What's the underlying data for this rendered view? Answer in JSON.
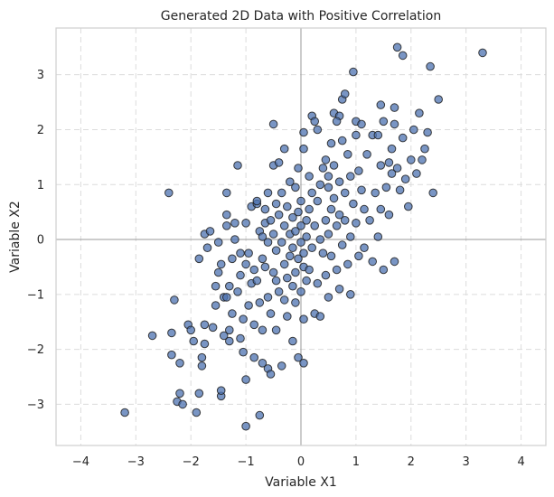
{
  "chart_data": {
    "type": "scatter",
    "title": "Generated 2D Data with Positive Correlation",
    "xlabel": "Variable X1",
    "ylabel": "Variable X2",
    "xlim": [
      -4.45,
      4.45
    ],
    "ylim": [
      -3.75,
      3.85
    ],
    "xticks": [
      -4,
      -3,
      -2,
      -1,
      0,
      1,
      2,
      3,
      4
    ],
    "yticks": [
      -3,
      -2,
      -1,
      0,
      1,
      2,
      3
    ],
    "xtick_labels": [
      "−4",
      "−3",
      "−2",
      "−1",
      "0",
      "1",
      "2",
      "3",
      "4"
    ],
    "ytick_labels": [
      "−3",
      "−2",
      "−1",
      "0",
      "1",
      "2",
      "3"
    ],
    "grid": true,
    "zero_lines": true,
    "point_color": "#4c72b0",
    "point_edge_color": "#1f1f1f",
    "point_opacity": 0.75,
    "series": [
      {
        "points": [
          [
            -3.2,
            -3.15
          ],
          [
            -2.4,
            0.85
          ],
          [
            -2.7,
            -1.75
          ],
          [
            -2.35,
            -1.7
          ],
          [
            -2.35,
            -2.1
          ],
          [
            -2.3,
            -1.1
          ],
          [
            -2.25,
            -2.95
          ],
          [
            -2.2,
            -2.25
          ],
          [
            -2.2,
            -2.8
          ],
          [
            -2.15,
            -3.0
          ],
          [
            -2.05,
            -1.55
          ],
          [
            -2.0,
            -1.65
          ],
          [
            -1.95,
            -1.85
          ],
          [
            -1.9,
            -3.15
          ],
          [
            -1.85,
            -0.35
          ],
          [
            -1.85,
            -2.8
          ],
          [
            -1.8,
            -2.3
          ],
          [
            -1.8,
            -2.15
          ],
          [
            -1.75,
            -1.9
          ],
          [
            -1.75,
            -1.55
          ],
          [
            -1.75,
            0.1
          ],
          [
            -1.7,
            -0.15
          ],
          [
            -1.65,
            0.15
          ],
          [
            -1.6,
            -1.6
          ],
          [
            -1.55,
            -1.2
          ],
          [
            -1.55,
            -0.85
          ],
          [
            -1.5,
            -0.05
          ],
          [
            -1.5,
            -0.6
          ],
          [
            -1.45,
            -2.85
          ],
          [
            -1.45,
            -2.75
          ],
          [
            -1.45,
            -0.45
          ],
          [
            -1.4,
            -1.05
          ],
          [
            -1.4,
            -1.75
          ],
          [
            -1.35,
            -1.05
          ],
          [
            -1.35,
            0.45
          ],
          [
            -1.35,
            0.25
          ],
          [
            -1.35,
            0.85
          ],
          [
            -1.3,
            -0.85
          ],
          [
            -1.3,
            -1.65
          ],
          [
            -1.3,
            -1.85
          ],
          [
            -1.25,
            -0.35
          ],
          [
            -1.25,
            -1.35
          ],
          [
            -1.2,
            0.3
          ],
          [
            -1.2,
            0.0
          ],
          [
            -1.15,
            -0.95
          ],
          [
            -1.15,
            1.35
          ],
          [
            -1.1,
            -0.25
          ],
          [
            -1.1,
            -0.65
          ],
          [
            -1.1,
            -1.8
          ],
          [
            -1.05,
            -2.05
          ],
          [
            -1.05,
            -1.45
          ],
          [
            -1.0,
            -0.45
          ],
          [
            -1.0,
            0.3
          ],
          [
            -1.0,
            -2.55
          ],
          [
            -1.0,
            -3.4
          ],
          [
            -0.95,
            -0.25
          ],
          [
            -0.95,
            -1.2
          ],
          [
            -0.9,
            -0.8
          ],
          [
            -0.9,
            0.6
          ],
          [
            -0.85,
            -1.55
          ],
          [
            -0.85,
            -2.15
          ],
          [
            -0.85,
            -0.55
          ],
          [
            -0.8,
            0.65
          ],
          [
            -0.8,
            0.7
          ],
          [
            -0.8,
            -0.75
          ],
          [
            -0.75,
            0.15
          ],
          [
            -0.75,
            -1.15
          ],
          [
            -0.75,
            -3.2
          ],
          [
            -0.7,
            -1.65
          ],
          [
            -0.7,
            -2.25
          ],
          [
            -0.7,
            0.05
          ],
          [
            -0.7,
            -0.35
          ],
          [
            -0.65,
            0.55
          ],
          [
            -0.65,
            -0.5
          ],
          [
            -0.65,
            0.3
          ],
          [
            -0.6,
            -2.35
          ],
          [
            -0.6,
            -1.05
          ],
          [
            -0.6,
            0.85
          ],
          [
            -0.6,
            -0.05
          ],
          [
            -0.55,
            -2.45
          ],
          [
            -0.55,
            -1.35
          ],
          [
            -0.55,
            0.35
          ],
          [
            -0.5,
            0.1
          ],
          [
            -0.5,
            -0.6
          ],
          [
            -0.5,
            1.35
          ],
          [
            -0.5,
            2.1
          ],
          [
            -0.45,
            -0.75
          ],
          [
            -0.45,
            0.65
          ],
          [
            -0.45,
            -1.65
          ],
          [
            -0.45,
            -0.2
          ],
          [
            -0.4,
            0.45
          ],
          [
            -0.4,
            1.4
          ],
          [
            -0.4,
            -0.95
          ],
          [
            -0.35,
            -0.05
          ],
          [
            -0.35,
            0.85
          ],
          [
            -0.35,
            -2.3
          ],
          [
            -0.3,
            -0.45
          ],
          [
            -0.3,
            0.25
          ],
          [
            -0.3,
            1.65
          ],
          [
            -0.3,
            -1.1
          ],
          [
            -0.25,
            -0.7
          ],
          [
            -0.25,
            0.6
          ],
          [
            -0.25,
            -1.4
          ],
          [
            -0.2,
            0.1
          ],
          [
            -0.2,
            1.05
          ],
          [
            -0.2,
            -0.3
          ],
          [
            -0.15,
            -0.85
          ],
          [
            -0.15,
            0.4
          ],
          [
            -0.15,
            -1.85
          ],
          [
            -0.15,
            -0.15
          ],
          [
            -0.1,
            0.95
          ],
          [
            -0.1,
            -0.6
          ],
          [
            -0.1,
            0.15
          ],
          [
            -0.1,
            -1.15
          ],
          [
            -0.05,
            0.5
          ],
          [
            -0.05,
            -0.35
          ],
          [
            -0.05,
            1.3
          ],
          [
            -0.05,
            -2.15
          ],
          [
            0.0,
            0.25
          ],
          [
            0.0,
            -0.95
          ],
          [
            0.0,
            -0.05
          ],
          [
            0.0,
            0.7
          ],
          [
            0.05,
            1.65
          ],
          [
            0.05,
            -0.5
          ],
          [
            0.05,
            -1.45
          ],
          [
            0.05,
            1.95
          ],
          [
            0.05,
            -0.25
          ],
          [
            0.05,
            -2.25
          ],
          [
            0.1,
            0.35
          ],
          [
            0.1,
            -0.75
          ],
          [
            0.1,
            0.05
          ],
          [
            0.15,
            1.15
          ],
          [
            0.15,
            -0.55
          ],
          [
            0.15,
            0.55
          ],
          [
            0.2,
            -0.15
          ],
          [
            0.2,
            2.25
          ],
          [
            0.2,
            0.85
          ],
          [
            0.25,
            2.15
          ],
          [
            0.25,
            -1.35
          ],
          [
            0.25,
            0.25
          ],
          [
            0.3,
            -0.8
          ],
          [
            0.3,
            0.7
          ],
          [
            0.3,
            2.0
          ],
          [
            0.35,
            -1.4
          ],
          [
            0.35,
            1.0
          ],
          [
            0.35,
            0.0
          ],
          [
            0.4,
            1.3
          ],
          [
            0.4,
            -0.25
          ],
          [
            0.45,
            0.35
          ],
          [
            0.45,
            1.45
          ],
          [
            0.45,
            -0.65
          ],
          [
            0.5,
            0.95
          ],
          [
            0.5,
            1.15
          ],
          [
            0.5,
            -1.05
          ],
          [
            0.5,
            0.1
          ],
          [
            0.55,
            1.75
          ],
          [
            0.55,
            0.55
          ],
          [
            0.55,
            -0.3
          ],
          [
            0.6,
            0.75
          ],
          [
            0.6,
            2.3
          ],
          [
            0.6,
            1.35
          ],
          [
            0.65,
            -0.55
          ],
          [
            0.65,
            0.25
          ],
          [
            0.7,
            1.05
          ],
          [
            0.7,
            2.25
          ],
          [
            0.7,
            0.45
          ],
          [
            0.7,
            -0.9
          ],
          [
            0.75,
            2.55
          ],
          [
            0.75,
            1.8
          ],
          [
            0.75,
            -0.1
          ],
          [
            0.8,
            0.85
          ],
          [
            0.8,
            0.35
          ],
          [
            0.8,
            2.65
          ],
          [
            0.85,
            1.55
          ],
          [
            0.85,
            -0.45
          ],
          [
            0.9,
            1.15
          ],
          [
            0.9,
            0.05
          ],
          [
            0.9,
            -1.0
          ],
          [
            0.95,
            3.05
          ],
          [
            0.95,
            0.65
          ],
          [
            1.0,
            1.9
          ],
          [
            1.0,
            0.3
          ],
          [
            1.0,
            2.15
          ],
          [
            1.05,
            -0.3
          ],
          [
            1.05,
            1.25
          ],
          [
            1.1,
            0.9
          ],
          [
            1.1,
            2.1
          ],
          [
            1.15,
            0.55
          ],
          [
            1.15,
            -0.15
          ],
          [
            1.2,
            1.55
          ],
          [
            1.25,
            0.35
          ],
          [
            1.3,
            1.9
          ],
          [
            1.3,
            -0.4
          ],
          [
            1.35,
            0.85
          ],
          [
            1.4,
            1.9
          ],
          [
            1.4,
            0.05
          ],
          [
            1.45,
            1.35
          ],
          [
            1.45,
            0.55
          ],
          [
            1.5,
            2.15
          ],
          [
            1.5,
            -0.55
          ],
          [
            1.55,
            0.95
          ],
          [
            1.6,
            1.4
          ],
          [
            1.6,
            0.45
          ],
          [
            1.65,
            1.2
          ],
          [
            1.65,
            1.65
          ],
          [
            1.7,
            2.1
          ],
          [
            1.7,
            -0.4
          ],
          [
            1.7,
            2.4
          ],
          [
            1.75,
            1.3
          ],
          [
            1.75,
            3.5
          ],
          [
            1.8,
            0.9
          ],
          [
            1.85,
            1.85
          ],
          [
            1.85,
            3.35
          ],
          [
            1.9,
            1.1
          ],
          [
            1.95,
            0.6
          ],
          [
            2.0,
            1.45
          ],
          [
            2.05,
            2.0
          ],
          [
            2.1,
            1.2
          ],
          [
            2.15,
            2.3
          ],
          [
            2.2,
            1.45
          ],
          [
            2.25,
            1.65
          ],
          [
            2.3,
            1.95
          ],
          [
            2.35,
            3.15
          ],
          [
            2.4,
            0.85
          ],
          [
            2.5,
            2.55
          ],
          [
            3.3,
            3.4
          ],
          [
            1.45,
            2.45
          ],
          [
            0.65,
            2.15
          ]
        ]
      }
    ]
  }
}
